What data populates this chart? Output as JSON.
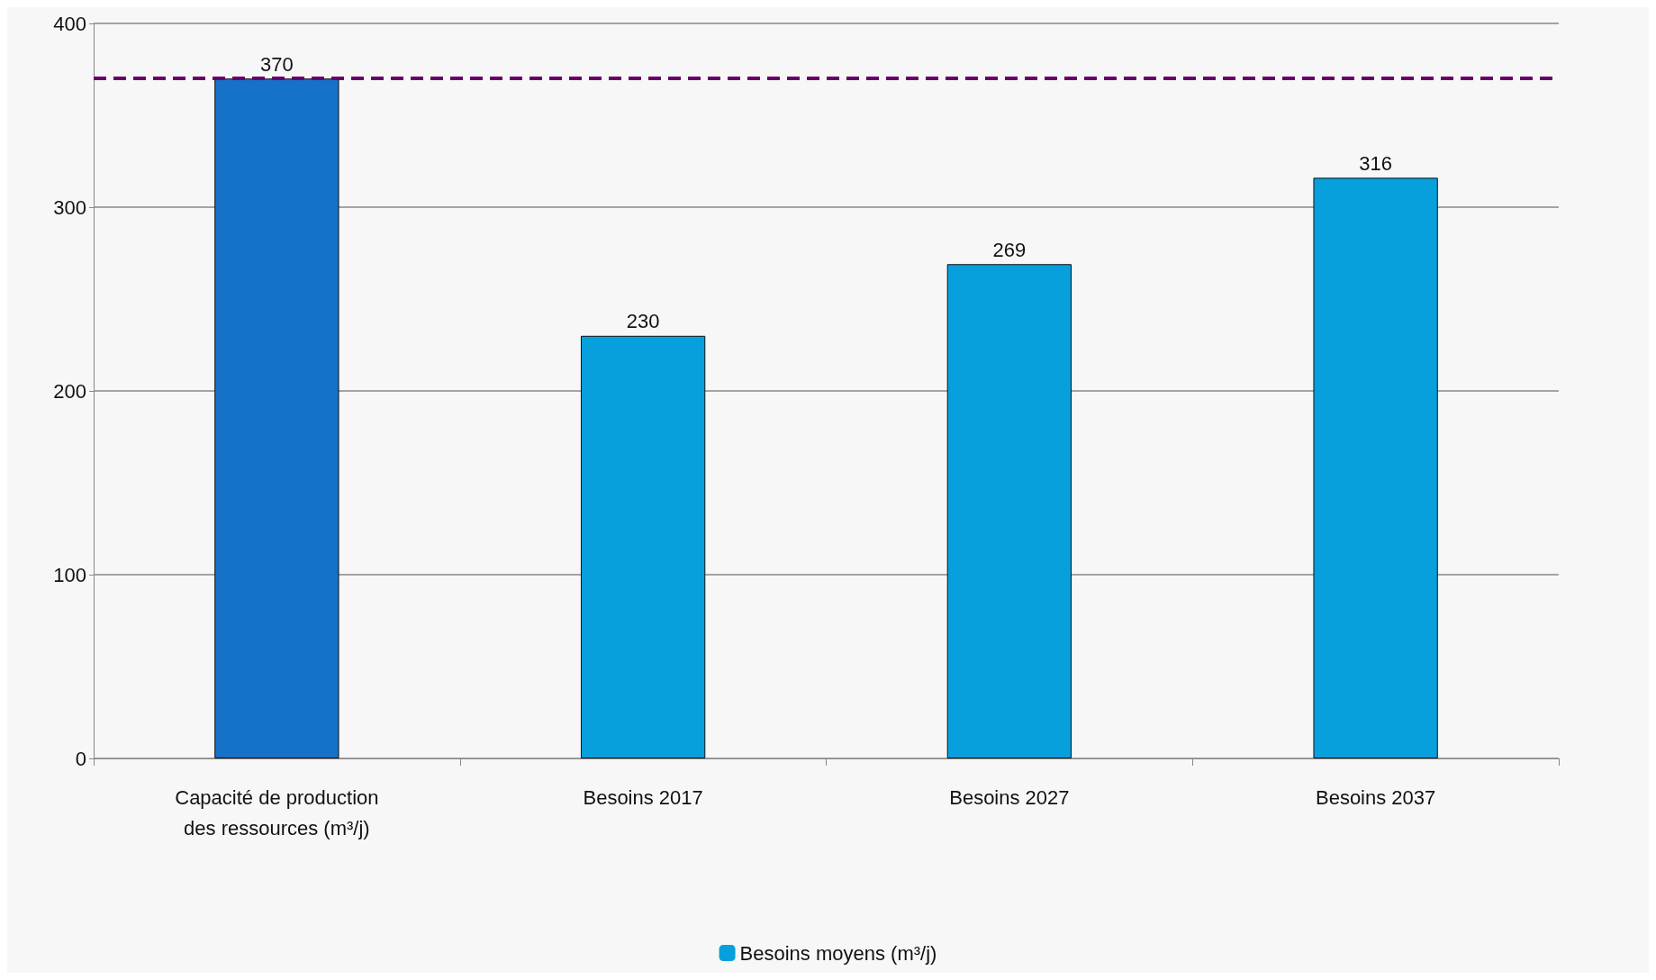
{
  "chart_data": {
    "type": "bar",
    "categories": [
      "Capacité de production\ndes ressources (m³/j)",
      "Besoins 2017",
      "Besoins 2027",
      "Besoins 2037"
    ],
    "series": [
      {
        "name": "Besoins moyens (m³/j)",
        "color": "#08a0dc",
        "colors": [
          "#1572c8",
          "#08a0dc",
          "#08a0dc",
          "#08a0dc"
        ],
        "values": [
          370,
          230,
          269,
          316
        ]
      }
    ],
    "ylim": [
      0,
      400
    ],
    "yticks": [
      0,
      100,
      200,
      300,
      400
    ],
    "grid": "y",
    "legend": "bottom",
    "data_labels": true,
    "ref_lines": [
      {
        "axis": "y",
        "value": 370,
        "color": "#660066",
        "line_style": "dashed"
      }
    ]
  }
}
